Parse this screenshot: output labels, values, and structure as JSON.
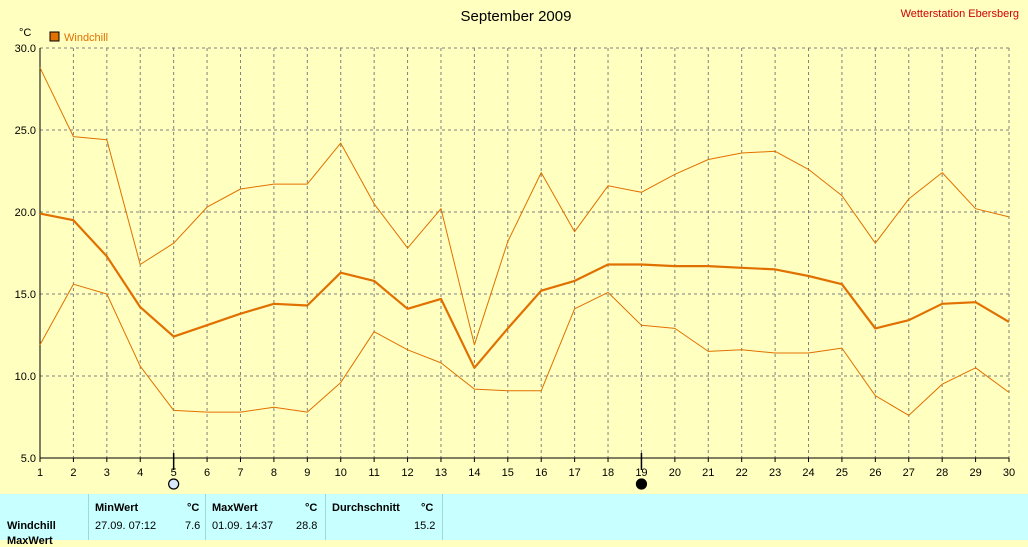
{
  "chart_data": {
    "type": "line",
    "title": "September 2009",
    "station": "Wetterstation Ebersberg",
    "unit": "°C",
    "legend": "Windchill",
    "x": [
      1,
      2,
      3,
      4,
      5,
      6,
      7,
      8,
      9,
      10,
      11,
      12,
      13,
      14,
      15,
      16,
      17,
      18,
      19,
      20,
      21,
      22,
      23,
      24,
      25,
      26,
      27,
      28,
      29,
      30
    ],
    "ylim": [
      5.0,
      30.0
    ],
    "yticks": [
      "5.0",
      "10.0",
      "15.0",
      "20.0",
      "25.0",
      "30.0"
    ],
    "grid": true,
    "series": [
      {
        "role": "max",
        "values": [
          28.8,
          24.6,
          24.4,
          16.8,
          18.1,
          20.3,
          21.4,
          21.7,
          21.7,
          24.2,
          20.5,
          17.8,
          20.2,
          11.9,
          18.2,
          22.4,
          18.8,
          21.6,
          21.2,
          22.3,
          23.2,
          23.6,
          23.7,
          22.6,
          21.0,
          18.1,
          20.8,
          22.4,
          20.2,
          19.7
        ]
      },
      {
        "role": "avg",
        "values": [
          19.9,
          19.5,
          17.3,
          14.2,
          12.4,
          13.1,
          13.8,
          14.4,
          14.3,
          16.3,
          15.8,
          14.1,
          14.7,
          10.5,
          12.9,
          15.2,
          15.8,
          16.8,
          16.8,
          16.7,
          16.7,
          16.6,
          16.5,
          16.1,
          15.6,
          12.9,
          13.4,
          14.4,
          14.5,
          13.3
        ]
      },
      {
        "role": "min",
        "values": [
          11.9,
          15.6,
          15.0,
          10.6,
          7.9,
          7.8,
          7.8,
          8.1,
          7.8,
          9.6,
          12.7,
          11.6,
          10.8,
          9.2,
          9.1,
          9.1,
          14.1,
          15.1,
          13.1,
          12.9,
          11.5,
          11.6,
          11.4,
          11.4,
          11.7,
          8.8,
          7.6,
          9.5,
          10.5,
          9.0
        ]
      }
    ],
    "markers": [
      {
        "x": 5,
        "icon": "full-moon-icon"
      },
      {
        "x": 19,
        "icon": "new-moon-icon"
      }
    ],
    "colors": {
      "series": "#e07000",
      "bg": "#ffffc0",
      "grid": "#808080"
    }
  },
  "stats": {
    "min_header": "MinWert",
    "max_header": "MaxWert",
    "avg_header": "Durchschnitt",
    "unit": "°C",
    "row_label": "Windchill",
    "min_date": "27.09.  07:12",
    "min_value": "7.6",
    "max_date": "01.09.  14:37",
    "max_value": "28.8",
    "avg_value": "15.2",
    "row2_label": "MaxWert"
  }
}
